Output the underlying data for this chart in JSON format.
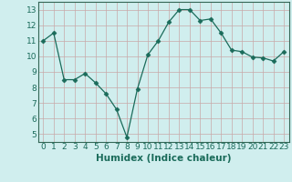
{
  "x": [
    0,
    1,
    2,
    3,
    4,
    5,
    6,
    7,
    8,
    9,
    10,
    11,
    12,
    13,
    14,
    15,
    16,
    17,
    18,
    19,
    20,
    21,
    22,
    23
  ],
  "y": [
    11.0,
    11.5,
    8.5,
    8.5,
    8.9,
    8.3,
    7.6,
    6.6,
    4.8,
    7.9,
    10.1,
    11.0,
    12.2,
    13.0,
    13.0,
    12.3,
    12.4,
    11.5,
    10.4,
    10.3,
    9.95,
    9.9,
    9.7,
    10.3
  ],
  "line_color": "#1a6b5a",
  "marker": "D",
  "marker_size": 2.5,
  "bg_color": "#d0eeee",
  "grid_color": "#b0d8d8",
  "xlabel": "Humidex (Indice chaleur)",
  "ylim": [
    4.5,
    13.5
  ],
  "xlim": [
    -0.5,
    23.5
  ],
  "yticks": [
    5,
    6,
    7,
    8,
    9,
    10,
    11,
    12,
    13
  ],
  "xticks": [
    0,
    1,
    2,
    3,
    4,
    5,
    6,
    7,
    8,
    9,
    10,
    11,
    12,
    13,
    14,
    15,
    16,
    17,
    18,
    19,
    20,
    21,
    22,
    23
  ],
  "xtick_labels": [
    "0",
    "1",
    "2",
    "3",
    "4",
    "5",
    "6",
    "7",
    "8",
    "9",
    "10",
    "11",
    "12",
    "13",
    "14",
    "15",
    "16",
    "17",
    "18",
    "19",
    "20",
    "21",
    "22",
    "23"
  ],
  "tick_fontsize": 6.5,
  "xlabel_fontsize": 7.5,
  "spine_color": "#336655"
}
